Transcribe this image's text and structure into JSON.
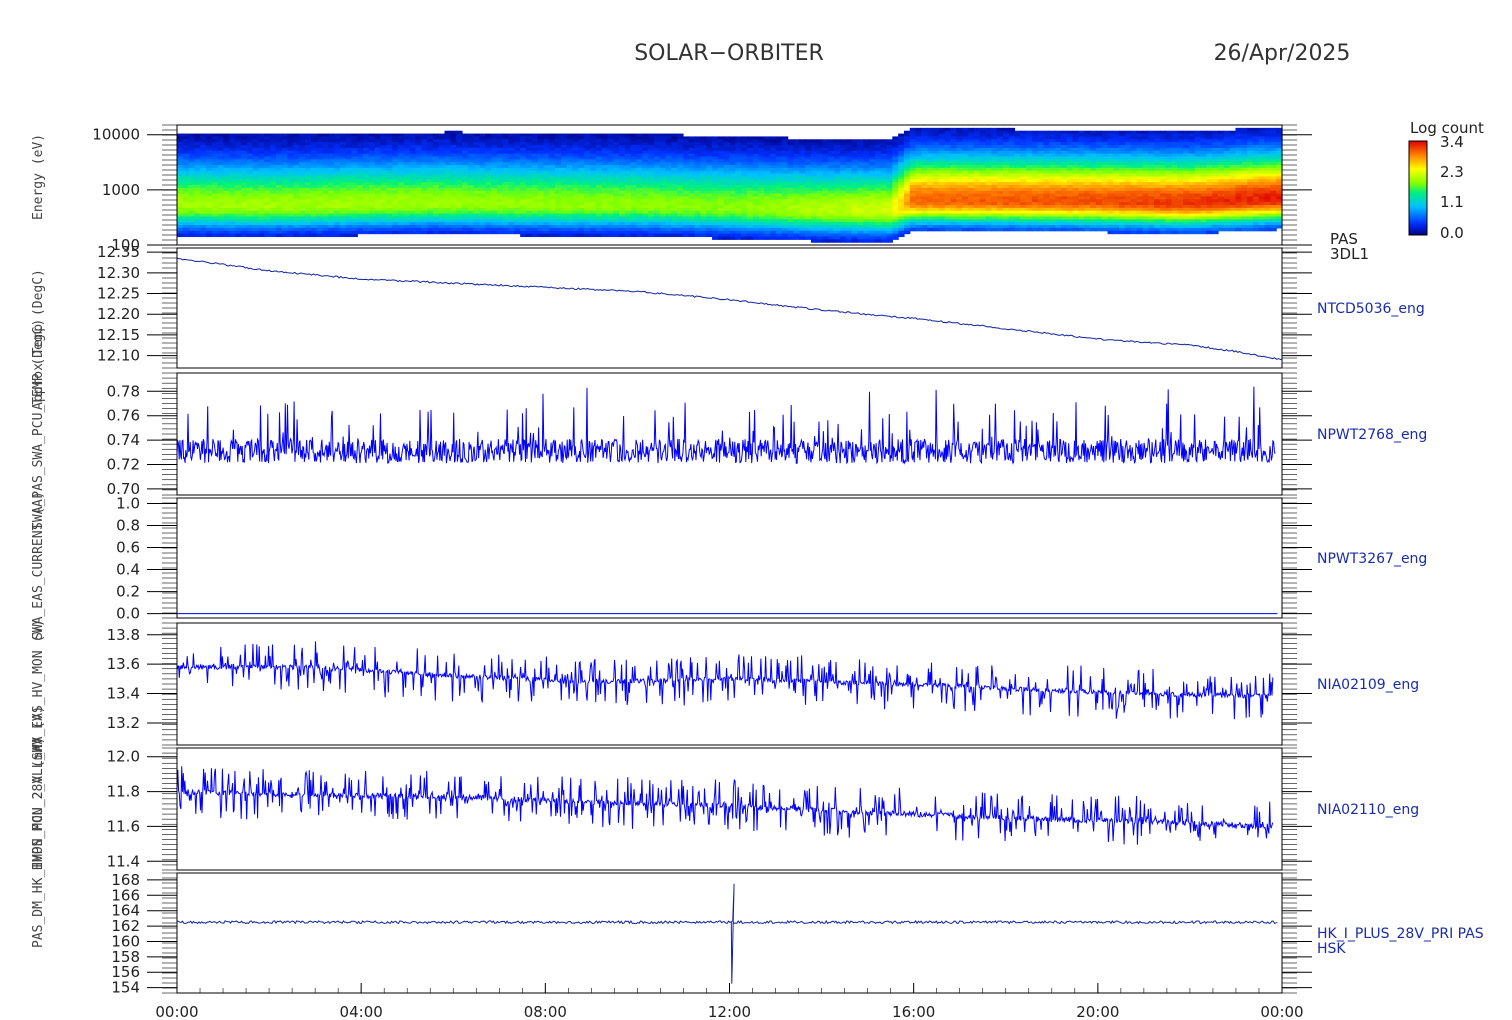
{
  "header": {
    "title": "SOLAR−ORBITER",
    "date": "26/Apr/2025"
  },
  "colorbar": {
    "title": "Log count",
    "ticks": [
      "3.4",
      "2.3",
      "1.1",
      "0.0"
    ]
  },
  "y_axis_labels": [
    "Energy (eV)",
    "Approx Temp (DegC)",
    "SWA_PAS_SWA_PCU_TEMP (DegC)",
    "SWA_EAS_CURRENT (A)",
    "SWA_EAS_HV_MON (V)",
    "HVPS_MON_2_ALL_HV (V)",
    "PAS_DM_HK_IMON_PCU_28V (mA)"
  ],
  "colors": {
    "trace": "#0000ff",
    "label": "#1a2ca8",
    "navy_trace": "#10239e"
  },
  "chart_data": {
    "type": "line",
    "x_axis": {
      "unit": "hours",
      "range": [
        0,
        24
      ],
      "tick_labels": [
        "00:00",
        "04:00",
        "08:00",
        "12:00",
        "16:00",
        "20:00",
        "00:00"
      ]
    },
    "panels": [
      {
        "type": "heatmap",
        "name": "PAS",
        "label_lines": [
          "PAS",
          "3DL1"
        ],
        "y_scale": "log",
        "ylim": [
          100,
          15000
        ],
        "ytick_labels": [
          "10000",
          "1000",
          "100"
        ],
        "peak_energy_profile": {
          "x": [
            0,
            2,
            4,
            6,
            8,
            10,
            12,
            14,
            15.5,
            16,
            18,
            20,
            22,
            24
          ],
          "energy": [
            520,
            500,
            540,
            560,
            530,
            520,
            470,
            420,
            410,
            640,
            630,
            610,
            570,
            690
          ]
        },
        "peak_log_count_profile": {
          "x": [
            0,
            4,
            8,
            12,
            15.5,
            16,
            20,
            24
          ],
          "value": [
            2.0,
            2.0,
            1.95,
            1.9,
            2.2,
            3.0,
            3.1,
            3.3
          ]
        }
      },
      {
        "name": "NTCD5036_eng",
        "ylim": [
          12.07,
          12.36
        ],
        "ytick_labels": [
          "12.35",
          "12.30",
          "12.25",
          "12.20",
          "12.15",
          "12.10"
        ],
        "line": {
          "x": [
            0,
            2,
            4,
            6,
            8,
            10,
            12,
            14,
            16,
            18,
            20,
            22,
            23,
            24
          ],
          "y": [
            12.335,
            12.305,
            12.285,
            12.275,
            12.265,
            12.255,
            12.235,
            12.21,
            12.19,
            12.165,
            12.14,
            12.125,
            12.11,
            12.09
          ]
        }
      },
      {
        "name": "NPWT2768_eng",
        "ylim": [
          0.695,
          0.795
        ],
        "ytick_labels": [
          "0.78",
          "0.76",
          "0.74",
          "0.72",
          "0.70"
        ],
        "baseline": 0.731,
        "range": [
          0.712,
          0.785
        ]
      },
      {
        "name": "NPWT3267_eng",
        "ylim": [
          -0.04,
          1.05
        ],
        "ytick_labels": [
          "1.0",
          "0.8",
          "0.6",
          "0.4",
          "0.2",
          "0.0"
        ],
        "constant": 0.0
      },
      {
        "name": "NIA02109_eng",
        "ylim": [
          13.05,
          13.88
        ],
        "ytick_labels": [
          "13.8",
          "13.6",
          "13.4",
          "13.2"
        ],
        "level_profile": {
          "x": [
            0,
            3,
            6,
            9,
            12,
            15,
            17,
            19,
            21,
            23.8
          ],
          "y": [
            13.58,
            13.58,
            13.52,
            13.48,
            13.5,
            13.47,
            13.45,
            13.42,
            13.4,
            13.38
          ]
        },
        "range": [
          13.12,
          13.83
        ]
      },
      {
        "name": "NIA02110_eng",
        "ylim": [
          11.35,
          12.05
        ],
        "ytick_labels": [
          "12.0",
          "11.8",
          "11.6",
          "11.4"
        ],
        "level_profile": {
          "x": [
            0,
            3,
            6,
            9,
            12,
            15,
            17,
            19,
            21,
            23.8
          ],
          "y": [
            11.8,
            11.78,
            11.77,
            11.74,
            11.72,
            11.68,
            11.66,
            11.64,
            11.63,
            11.6
          ]
        },
        "range": [
          11.41,
          12.01
        ]
      },
      {
        "name": "HK_I_PLUS_28V_PRI PAS",
        "label_lines": [
          "HK_I_PLUS_28V_PRI PAS",
          "HSK"
        ],
        "ylim": [
          153.3,
          168.9
        ],
        "ytick_labels": [
          "168",
          "166",
          "164",
          "162",
          "160",
          "158",
          "156",
          "154"
        ],
        "baseline": 162.5,
        "spike": {
          "x": 12.05,
          "min": 154.5,
          "max": 167.5
        }
      }
    ]
  }
}
